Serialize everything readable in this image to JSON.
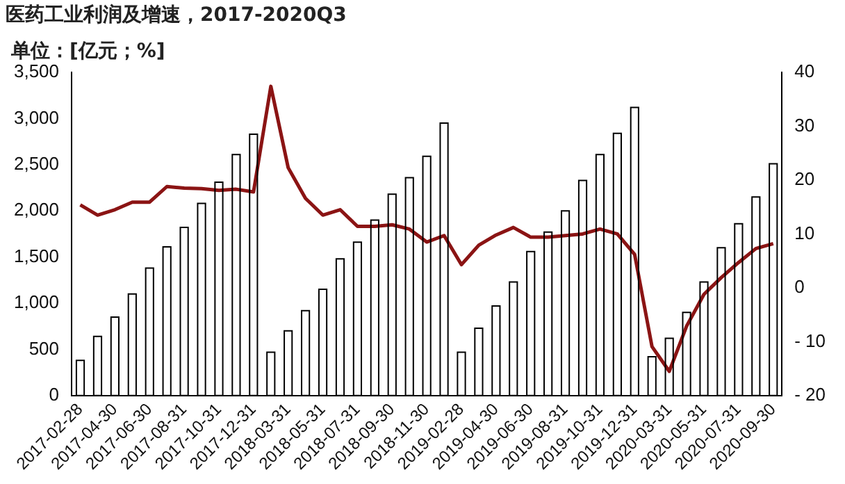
{
  "chart_data": {
    "type": "bar",
    "title": "医药工业利润及增速，2017-2020Q3",
    "ylabel": "单位：[亿元；%]",
    "categories": [
      "2017-02-28",
      null,
      "2017-04-30",
      null,
      "2017-06-30",
      null,
      "2017-08-31",
      null,
      "2017-10-31",
      null,
      "2017-12-31",
      null,
      "2018-03-31",
      null,
      "2018-05-31",
      null,
      "2018-07-31",
      null,
      "2018-09-30",
      null,
      "2018-11-30",
      null,
      "2019-02-28",
      null,
      "2019-04-30",
      null,
      "2019-06-30",
      null,
      "2019-08-31",
      null,
      "2019-10-31",
      null,
      "2019-12-31",
      null,
      "2020-03-31",
      null,
      "2020-05-31",
      null,
      "2020-07-31",
      null,
      "2020-09-30"
    ],
    "series": [
      {
        "color": "#ffffff",
        "values": [
          380,
          640,
          850,
          1100,
          1380,
          1610,
          1820,
          2080,
          2310,
          2610,
          2830,
          470,
          700,
          920,
          1150,
          1480,
          1660,
          1900,
          2180,
          2360,
          2590,
          2950,
          470,
          730,
          970,
          1230,
          1560,
          1770,
          2000,
          2330,
          2610,
          2840,
          3120,
          420,
          620,
          900,
          1230,
          1600,
          1860,
          2150,
          2510
        ]
      },
      {
        "type": "line",
        "axis": "y2",
        "color": "#8b1414",
        "values": [
          15.4,
          13.5,
          14.5,
          15.9,
          15.9,
          18.8,
          18.5,
          18.4,
          18.1,
          18.3,
          17.8,
          37.4,
          22.3,
          16.6,
          13.5,
          14.5,
          11.4,
          11.4,
          11.7,
          10.9,
          8.5,
          9.7,
          4.3,
          7.9,
          9.8,
          11.2,
          9.4,
          9.4,
          9.7,
          10.0,
          10.9,
          10.0,
          6.2,
          -10.9,
          -15.5,
          -7.1,
          -1.2,
          1.9,
          4.7,
          7.3,
          8.2
        ]
      }
    ],
    "ylim": [
      0,
      3500
    ],
    "yticks": [
      0,
      {
        "value": 500,
        "label": "500"
      },
      {
        "value": 1000,
        "label": "1,000"
      },
      {
        "value": 1500,
        "label": "1,500"
      },
      {
        "value": 2000,
        "label": "2,000"
      },
      {
        "value": 2500,
        "label": "2,500"
      },
      {
        "value": 3000,
        "label": "3,000"
      },
      {
        "value": 3500,
        "label": "3,500"
      }
    ],
    "y2lim": [
      -20,
      40
    ],
    "y2ticks": [
      {
        "value": -20,
        "label": "- 20"
      },
      {
        "value": -10,
        "label": "- 10"
      },
      0,
      10,
      20,
      30,
      40
    ],
    "grid": false,
    "legend": false,
    "marker": "none",
    "line_style": "solid"
  }
}
